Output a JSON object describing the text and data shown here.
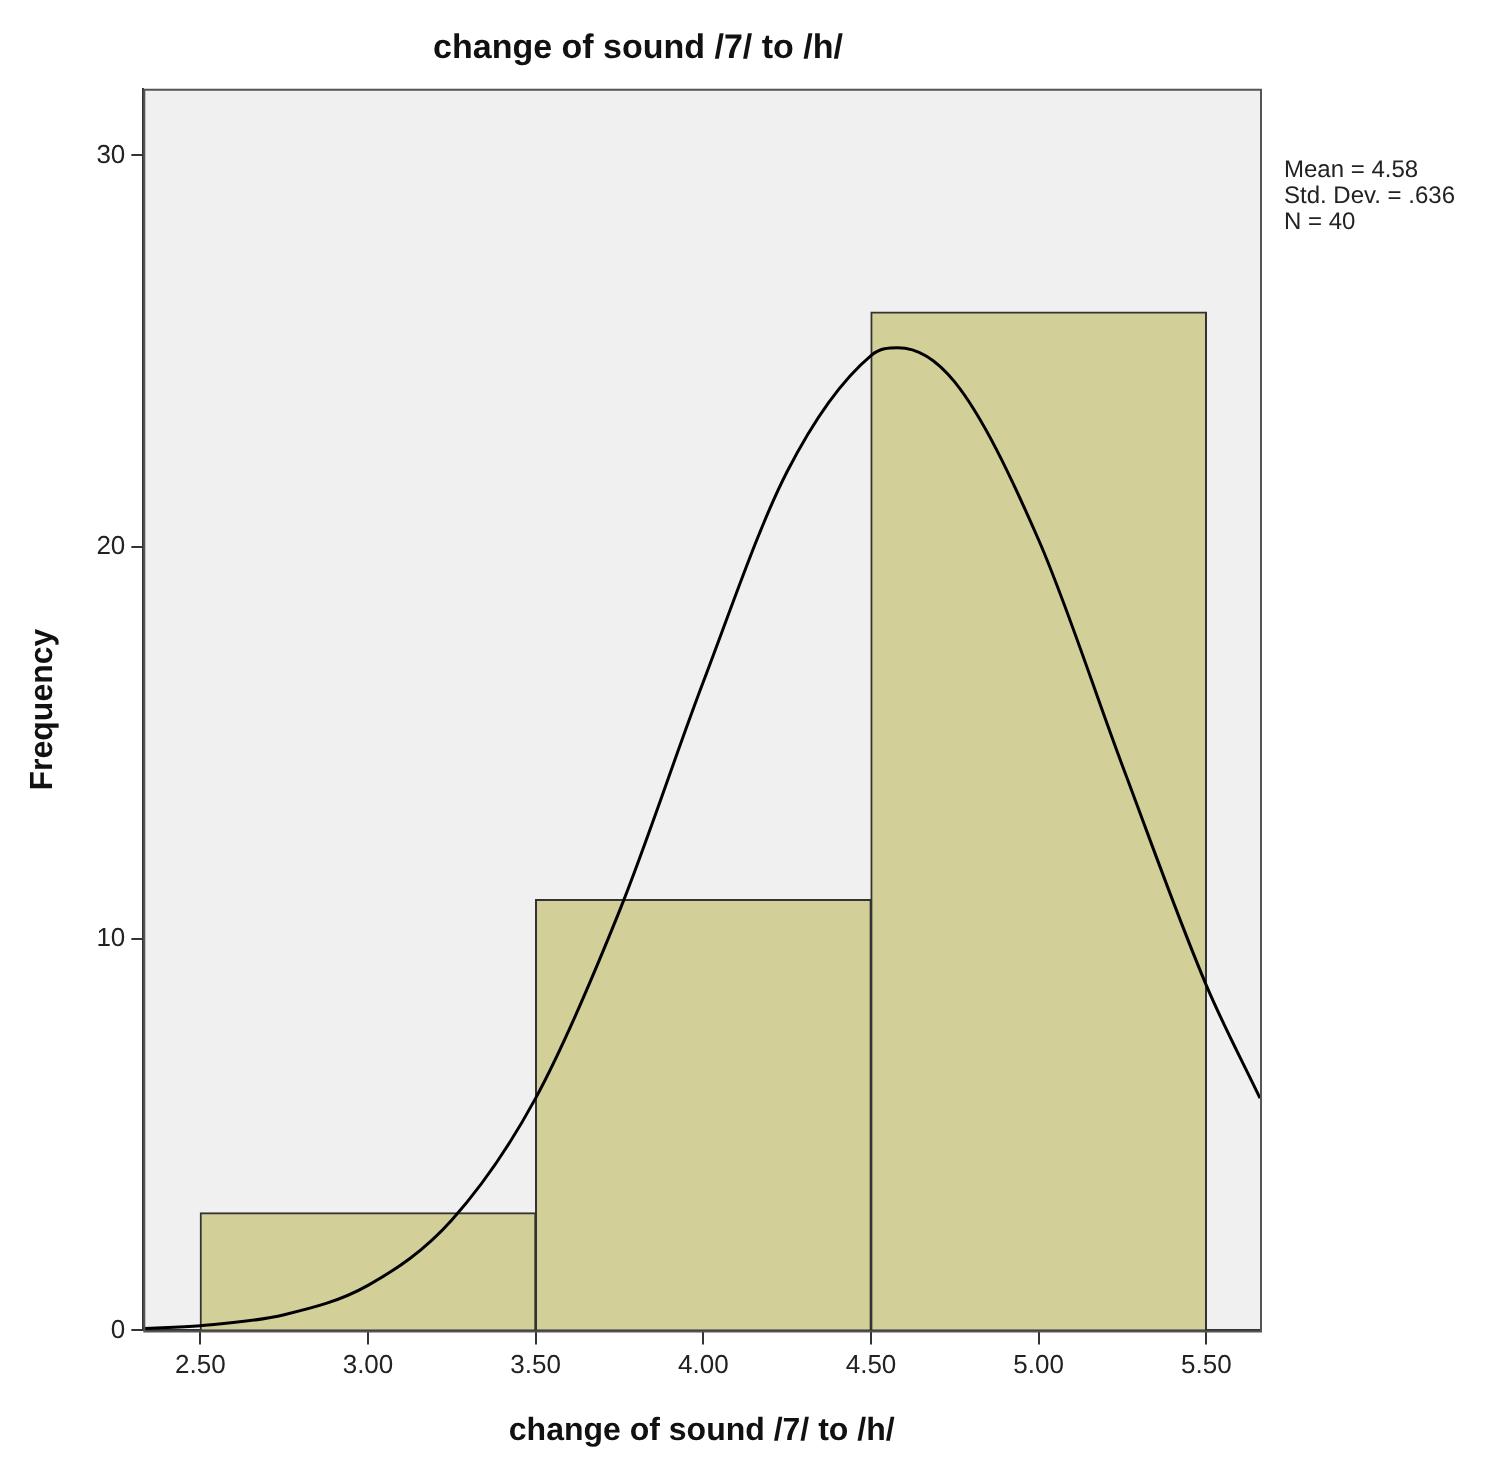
{
  "chart_data": {
    "type": "histogram",
    "title": "change of sound /7/ to /h/",
    "xlabel": "change of sound /7/ to /h/",
    "ylabel": "Frequency",
    "bins": [
      2.5,
      3.5,
      4.5,
      5.5
    ],
    "series": [
      {
        "color": "#d3cf98",
        "values": [
          3,
          11,
          26
        ]
      },
      {
        "type": "line",
        "color": "#000000",
        "x": [
          2.33,
          2.5,
          2.75,
          3.0,
          3.25,
          3.5,
          3.75,
          4.0,
          4.25,
          4.5,
          4.58,
          4.75,
          5.0,
          5.25,
          5.5,
          5.66
        ],
        "values": [
          0.05,
          0.12,
          0.4,
          1.15,
          2.82,
          5.93,
          10.71,
          16.56,
          21.93,
          24.89,
          25.09,
          24.21,
          20.18,
          14.41,
          8.81,
          5.93
        ]
      }
    ],
    "xlim": [
      2.33,
      5.66
    ],
    "ylim": [
      0,
      31.7
    ],
    "xticks": [
      {
        "value": 2.5,
        "label": "2.50"
      },
      {
        "value": 3,
        "label": "3.00"
      },
      {
        "value": 3.5,
        "label": "3.50"
      },
      {
        "value": 4,
        "label": "4.00"
      },
      {
        "value": 4.5,
        "label": "4.50"
      },
      {
        "value": 5,
        "label": "5.00"
      },
      {
        "value": 5.5,
        "label": "5.50"
      }
    ],
    "yticks": [
      0,
      10,
      20,
      30
    ],
    "annotations": [
      "Mean = 4.58",
      "Std. Dev. = .636",
      "N = 40"
    ],
    "grid": false,
    "legend": false,
    "marker": "none"
  }
}
